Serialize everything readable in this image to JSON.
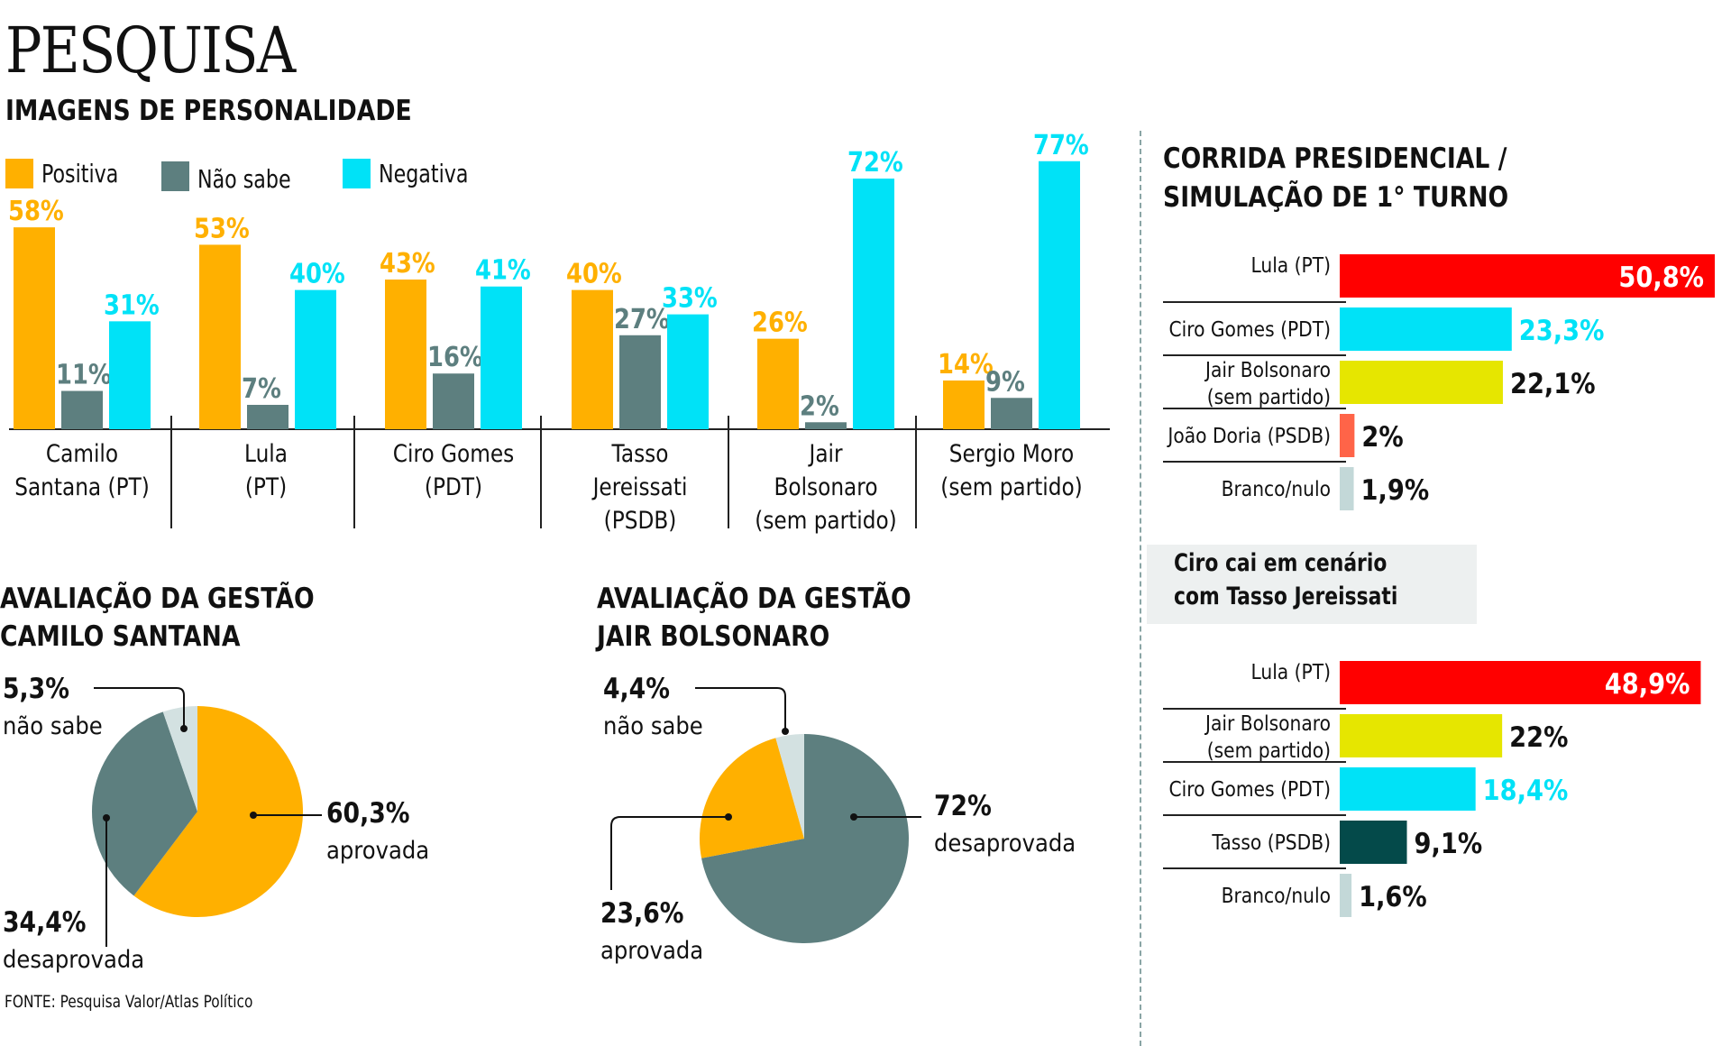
{
  "header": {
    "title": "PESQUISA",
    "subtitle": "IMAGENS DE PERSONALIDADE"
  },
  "colors": {
    "positive": "#ffb000",
    "unknown": "#5d7f7f",
    "negative": "#00e2f7",
    "lula": "#ff0000",
    "bolsonaro": "#e6e600",
    "doria": "#ff6448",
    "blank": "#c3d8d8",
    "tasso": "#044a4a",
    "pie_light": "#d3e1e1",
    "label_dark": "#111111",
    "label_white": "#ffffff"
  },
  "legend": [
    {
      "label": "Positiva",
      "color_key": "positive"
    },
    {
      "label": "Não sabe",
      "color_key": "unknown"
    },
    {
      "label": "Negativa",
      "color_key": "negative"
    }
  ],
  "chart_data": [
    {
      "id": "personality",
      "type": "bar",
      "title": "IMAGENS DE PERSONALIDADE",
      "xlabel": "",
      "ylabel": "",
      "ylim": [
        0,
        80
      ],
      "grid": false,
      "legend_position": "top-left",
      "categories": [
        [
          "Camilo",
          "Santana (PT)"
        ],
        [
          "Lula",
          "(PT)"
        ],
        [
          "Ciro Gomes",
          "(PDT)"
        ],
        [
          "Tasso",
          "Jereissati",
          "(PSDB)"
        ],
        [
          "Jair",
          "Bolsonaro",
          "(sem partido)"
        ],
        [
          "Sergio Moro",
          "(sem partido)"
        ]
      ],
      "series": [
        {
          "name": "Positiva",
          "color_key": "positive",
          "values": [
            58,
            53,
            43,
            40,
            26,
            14
          ]
        },
        {
          "name": "Não sabe",
          "color_key": "unknown",
          "values": [
            11,
            7,
            16,
            27,
            2,
            9
          ]
        },
        {
          "name": "Negativa",
          "color_key": "negative",
          "values": [
            31,
            40,
            41,
            33,
            72,
            77
          ]
        }
      ],
      "value_suffix": "%"
    },
    {
      "id": "camilo-approval",
      "type": "pie",
      "title": "AVALIAÇÃO DA GESTÃO CAMILO SANTANA",
      "slices": [
        {
          "label": "aprovada",
          "value": 60.3,
          "display": "60,3%",
          "color_key": "positive"
        },
        {
          "label": "desaprovada",
          "value": 34.4,
          "display": "34,4%",
          "color_key": "unknown"
        },
        {
          "label": "não sabe",
          "value": 5.3,
          "display": "5,3%",
          "color_key": "pie_light"
        }
      ]
    },
    {
      "id": "bolsonaro-approval",
      "type": "pie",
      "title": "AVALIAÇÃO DA GESTÃO JAIR BOLSONARO",
      "slices": [
        {
          "label": "desaprovada",
          "value": 72,
          "display": "72%",
          "color_key": "unknown"
        },
        {
          "label": "aprovada",
          "value": 23.6,
          "display": "23,6%",
          "color_key": "positive"
        },
        {
          "label": "não sabe",
          "value": 4.4,
          "display": "4,4%",
          "color_key": "pie_light"
        }
      ]
    },
    {
      "id": "race-1",
      "type": "bar",
      "orientation": "horizontal",
      "title": "CORRIDA PRESIDENCIAL / SIMULAÇÃO DE 1° TURNO",
      "xlim": [
        0,
        50.8
      ],
      "rows": [
        {
          "label": [
            "Lula (PT)"
          ],
          "value": 50.8,
          "display": "50,8%",
          "color_key": "lula",
          "label_inside": true,
          "value_color_key": "label_white"
        },
        {
          "label": [
            "Ciro Gomes (PDT)"
          ],
          "value": 23.3,
          "display": "23,3%",
          "color_key": "negative",
          "value_color_key": "negative"
        },
        {
          "label": [
            "Jair Bolsonaro",
            "(sem partido)"
          ],
          "value": 22.1,
          "display": "22,1%",
          "color_key": "bolsonaro",
          "value_color_key": "label_dark"
        },
        {
          "label": [
            "João Doria (PSDB)"
          ],
          "value": 2,
          "display": "2%",
          "color_key": "doria",
          "value_color_key": "label_dark"
        },
        {
          "label": [
            "Branco/nulo"
          ],
          "value": 1.9,
          "display": "1,9%",
          "color_key": "blank",
          "value_color_key": "label_dark"
        }
      ]
    },
    {
      "id": "race-2",
      "type": "bar",
      "orientation": "horizontal",
      "title": "Ciro cai em cenário com Tasso Jereissati",
      "xlim": [
        0,
        50.8
      ],
      "rows": [
        {
          "label": [
            "Lula (PT)"
          ],
          "value": 48.9,
          "display": "48,9%",
          "color_key": "lula",
          "label_inside": true,
          "value_color_key": "label_white"
        },
        {
          "label": [
            "Jair Bolsonaro",
            "(sem partido)"
          ],
          "value": 22,
          "display": "22%",
          "color_key": "bolsonaro",
          "value_color_key": "label_dark"
        },
        {
          "label": [
            "Ciro Gomes (PDT)"
          ],
          "value": 18.4,
          "display": "18,4%",
          "color_key": "negative",
          "value_color_key": "negative"
        },
        {
          "label": [
            "Tasso (PSDB)"
          ],
          "value": 9.1,
          "display": "9,1%",
          "color_key": "tasso",
          "value_color_key": "label_dark"
        },
        {
          "label": [
            "Branco/nulo"
          ],
          "value": 1.6,
          "display": "1,6%",
          "color_key": "blank",
          "value_color_key": "label_dark"
        }
      ]
    }
  ],
  "sections": {
    "camilo_title_1": "AVALIAÇÃO DA GESTÃO",
    "camilo_title_2": "CAMILO SANTANA",
    "bolsonaro_title_1": "AVALIAÇÃO DA GESTÃO",
    "bolsonaro_title_2": "JAIR BOLSONARO",
    "race_title_1": "CORRIDA PRESIDENCIAL /",
    "race_title_2": "SIMULAÇÃO DE 1° TURNO",
    "note_line_1": "Ciro cai em cenário",
    "note_line_2": "com Tasso Jereissati"
  },
  "source": "FONTE: Pesquisa Valor/Atlas Político"
}
